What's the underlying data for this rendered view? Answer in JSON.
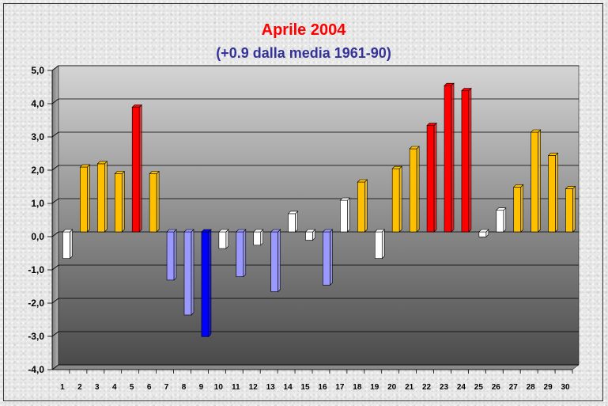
{
  "chart_data": {
    "type": "bar",
    "title": "Aprile 2004",
    "subtitle": "(+0.9 dalla media 1961-90)",
    "title_color": "#ff0000",
    "subtitle_color": "#333399",
    "xlabel": "",
    "ylabel": "",
    "ylim": [
      -4.0,
      5.0
    ],
    "y_ticks": [
      "5,0",
      "4,0",
      "3,0",
      "2,0",
      "1,0",
      "0,0",
      "-1,0",
      "-2,0",
      "-3,0",
      "-4,0"
    ],
    "y_tick_values": [
      5,
      4,
      3,
      2,
      1,
      0,
      -1,
      -2,
      -3,
      -4
    ],
    "grid": true,
    "legend": "none",
    "categories": [
      "1",
      "2",
      "3",
      "4",
      "5",
      "6",
      "7",
      "8",
      "9",
      "10",
      "11",
      "12",
      "13",
      "14",
      "15",
      "16",
      "17",
      "18",
      "19",
      "20",
      "21",
      "22",
      "23",
      "24",
      "25",
      "26",
      "27",
      "28",
      "29",
      "30"
    ],
    "values": [
      -0.8,
      1.95,
      2.05,
      1.75,
      3.75,
      1.75,
      -1.45,
      -2.5,
      -3.15,
      -0.5,
      -1.35,
      -0.4,
      -1.8,
      0.55,
      -0.25,
      -1.6,
      0.95,
      1.5,
      -0.8,
      1.9,
      2.5,
      3.2,
      4.4,
      4.25,
      -0.15,
      0.65,
      1.35,
      3.0,
      2.3,
      1.3
    ],
    "colors": {
      "very_warm": "#ff0000",
      "warm": "#ffc000",
      "near_normal": "#ffffff",
      "cool": "#9999ff",
      "very_cold": "#0000ff"
    },
    "bar_class": [
      "near_normal",
      "warm",
      "warm",
      "warm",
      "very_warm",
      "warm",
      "cool",
      "cool",
      "very_cold",
      "near_normal",
      "cool",
      "near_normal",
      "cool",
      "near_normal",
      "near_normal",
      "cool",
      "near_normal",
      "warm",
      "near_normal",
      "warm",
      "warm",
      "very_warm",
      "very_warm",
      "very_warm",
      "near_normal",
      "near_normal",
      "warm",
      "warm",
      "warm",
      "warm"
    ]
  }
}
